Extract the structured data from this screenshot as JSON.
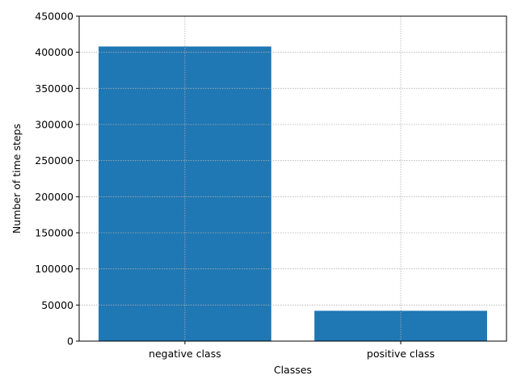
{
  "chart_data": {
    "type": "bar",
    "categories": [
      "negative class",
      "positive class"
    ],
    "values": [
      408000,
      42000
    ],
    "title": "",
    "xlabel": "Classes",
    "ylabel": "Number of time steps",
    "ylim": [
      0,
      450000
    ],
    "yticks": [
      0,
      50000,
      100000,
      150000,
      200000,
      250000,
      300000,
      350000,
      400000,
      450000
    ],
    "ytick_labels": [
      "0",
      "50000",
      "100000",
      "150000",
      "200000",
      "250000",
      "300000",
      "350000",
      "400000",
      "450000"
    ],
    "grid": true,
    "bar_color": "#1f77b4"
  }
}
